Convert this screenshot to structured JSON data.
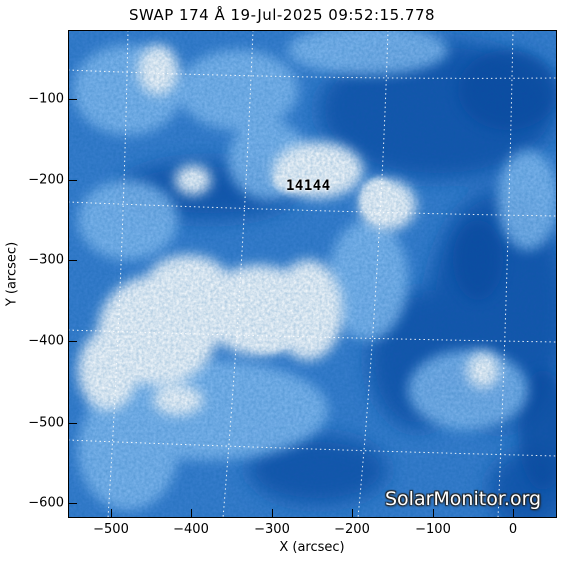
{
  "title": "SWAP 174 Å 19-Jul-2025 09:52:15.778",
  "axes": {
    "xlabel": "X (arcsec)",
    "ylabel": "Y (arcsec)",
    "x_ticks": [
      "−500",
      "−400",
      "−300",
      "−200",
      "−100",
      "0"
    ],
    "y_ticks": [
      "−100",
      "−200",
      "−300",
      "−400",
      "−500",
      "−600"
    ],
    "xlim": [
      -555,
      50
    ],
    "ylim": [
      -620,
      -20
    ]
  },
  "active_region_label": "14144",
  "watermark": "SolarMonitor.org",
  "colors": {
    "background_blue": "#2f74c4",
    "bright": "#ffffff",
    "dark_blue": "#0b3f8f",
    "grid": "#ffffff"
  }
}
